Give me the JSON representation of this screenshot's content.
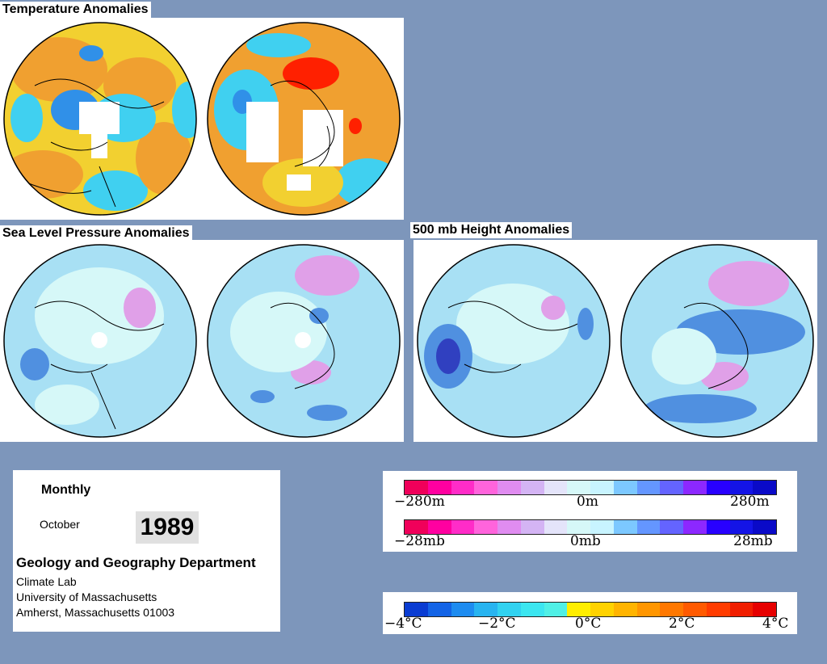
{
  "titles": {
    "temperature": "Temperature Anomalies",
    "slp": "Sea Level Pressure Anomalies",
    "h500": "500 mb Height Anomalies"
  },
  "info": {
    "period": "Monthly",
    "month": "October",
    "year": "1989",
    "dept": "Geology and Geography Department",
    "line1": "Climate Lab",
    "line2": "University of Massachusetts",
    "line3": "Amherst, Massachusetts 01003"
  },
  "legend_height": {
    "left": "−280m",
    "center": "0m",
    "right": "280m",
    "colors": [
      "#f0005a",
      "#ff00a0",
      "#ff2cc8",
      "#ff64dc",
      "#e08cf0",
      "#d4b4f4",
      "#e4e4fa",
      "#d6f8f8",
      "#c8f4ff",
      "#7cc8ff",
      "#6496ff",
      "#6464ff",
      "#8c28ff",
      "#2800ff",
      "#1414e6",
      "#0a0ac8"
    ]
  },
  "legend_pressure": {
    "left": "−28mb",
    "center": "0mb",
    "right": "28mb",
    "colors": [
      "#f0005a",
      "#ff00a0",
      "#ff2cc8",
      "#ff64dc",
      "#e08cf0",
      "#d4b4f4",
      "#e4e4fa",
      "#d6f8f8",
      "#c8f4ff",
      "#7cc8ff",
      "#6496ff",
      "#6464ff",
      "#8c28ff",
      "#2800ff",
      "#1414e6",
      "#0a0ac8"
    ]
  },
  "legend_temperature": {
    "labels": [
      "−4°C",
      "−2°C",
      "0°C",
      "2°C",
      "4°C"
    ],
    "colors": [
      "#0a3cd2",
      "#1464e6",
      "#1e8cf0",
      "#28b4f0",
      "#32d2f0",
      "#3ce6f0",
      "#50f0e6",
      "#ffee00",
      "#ffd200",
      "#ffb400",
      "#ff9600",
      "#ff7800",
      "#ff5a00",
      "#ff3c00",
      "#f01e00",
      "#e60000"
    ]
  },
  "palette": {
    "background": "#7d96bb",
    "temp_orange": "#f0a030",
    "temp_yellow": "#f2d030",
    "temp_cyan": "#40d0f0",
    "temp_blue": "#3090e8",
    "temp_red": "#ff2000",
    "pressure_light": "#d6f8f8",
    "pressure_cyan": "#a8e0f4",
    "pressure_blue": "#5090e0",
    "pressure_magenta": "#e0a0e8"
  }
}
